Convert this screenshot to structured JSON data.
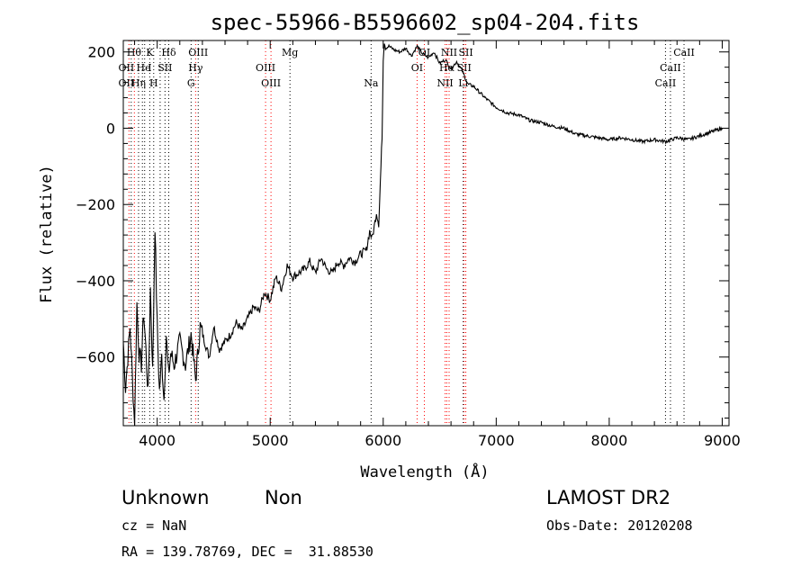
{
  "chart_data": {
    "type": "line",
    "title": "spec-55966-B5596602_sp04-204.fits",
    "xlabel": "Wavelength (Å)",
    "ylabel": "Flux (relative)",
    "xlim": [
      3700,
      9060
    ],
    "ylim": [
      -780,
      230
    ],
    "xticks": [
      4000,
      5000,
      6000,
      7000,
      8000,
      9000
    ],
    "yticks": [
      -600,
      -400,
      -200,
      0,
      200
    ],
    "series": [
      {
        "x": [
          3700,
          3720,
          3740,
          3760,
          3780,
          3800,
          3820,
          3840,
          3860,
          3880,
          3900,
          3920,
          3940,
          3960,
          3980,
          4000,
          4020,
          4040,
          4060,
          4080,
          4100,
          4120,
          4150,
          4200,
          4250,
          4300,
          4340,
          4380,
          4420,
          4460,
          4500,
          4550,
          4600,
          4650,
          4700,
          4750,
          4800,
          4850,
          4900,
          4950,
          5000,
          5050,
          5100,
          5150,
          5200,
          5250,
          5300,
          5350,
          5400,
          5450,
          5500,
          5550,
          5600,
          5650,
          5700,
          5750,
          5800,
          5850,
          5880,
          5900,
          5920,
          5940,
          5960,
          5970,
          5980,
          5990,
          6000,
          6010,
          6020,
          6050,
          6100,
          6150,
          6200,
          6250,
          6300,
          6350,
          6400,
          6450,
          6500,
          6550,
          6600,
          6650,
          6700,
          6750,
          6800,
          6900,
          7000,
          7100,
          7200,
          7300,
          7400,
          7500,
          7600,
          7700,
          7800,
          7900,
          8000,
          8100,
          8200,
          8300,
          8400,
          8500,
          8600,
          8700,
          8800,
          8900,
          9000
        ],
        "y": [
          -560,
          -680,
          -600,
          -520,
          -650,
          -780,
          -460,
          -590,
          -620,
          -480,
          -580,
          -700,
          -420,
          -640,
          -250,
          -520,
          -690,
          -600,
          -710,
          -540,
          -650,
          -590,
          -620,
          -560,
          -620,
          -540,
          -660,
          -520,
          -560,
          -600,
          -520,
          -580,
          -560,
          -540,
          -510,
          -530,
          -500,
          -470,
          -480,
          -430,
          -450,
          -390,
          -420,
          -360,
          -390,
          -380,
          -370,
          -350,
          -380,
          -340,
          -370,
          -380,
          -350,
          -360,
          -340,
          -350,
          -330,
          -320,
          -270,
          -290,
          -260,
          -220,
          -250,
          -180,
          -100,
          -20,
          180,
          225,
          210,
          215,
          205,
          200,
          210,
          190,
          215,
          195,
          185,
          200,
          170,
          180,
          155,
          175,
          150,
          115,
          110,
          80,
          55,
          40,
          35,
          20,
          15,
          5,
          0,
          -15,
          -20,
          -25,
          -30,
          -25,
          -30,
          -35,
          -30,
          -35,
          -25,
          -30,
          -20,
          -10,
          0
        ]
      }
    ],
    "lines": [
      {
        "w": 3750,
        "color": "#ff0000"
      },
      {
        "w": 3770,
        "color": "#000000"
      },
      {
        "w": 3798,
        "color": "#ff0000"
      },
      {
        "w": 3835,
        "color": "#000000"
      },
      {
        "w": 3869,
        "color": "#000000"
      },
      {
        "w": 3889,
        "color": "#000000"
      },
      {
        "w": 3934,
        "color": "#000000"
      },
      {
        "w": 3969,
        "color": "#000000"
      },
      {
        "w": 4026,
        "color": "#000000"
      },
      {
        "w": 4069,
        "color": "#000000"
      },
      {
        "w": 4102,
        "color": "#000000"
      },
      {
        "w": 4300,
        "color": "#000000"
      },
      {
        "w": 4340,
        "color": "#ff0000"
      },
      {
        "w": 4363,
        "color": "#000000"
      },
      {
        "w": 4959,
        "color": "#ff0000"
      },
      {
        "w": 5007,
        "color": "#ff0000"
      },
      {
        "w": 5175,
        "color": "#000000"
      },
      {
        "w": 5893,
        "color": "#000000"
      },
      {
        "w": 6300,
        "color": "#ff0000"
      },
      {
        "w": 6364,
        "color": "#ff0000"
      },
      {
        "w": 6548,
        "color": "#ff0000"
      },
      {
        "w": 6563,
        "color": "#ff0000"
      },
      {
        "w": 6583,
        "color": "#ff0000"
      },
      {
        "w": 6708,
        "color": "#000000"
      },
      {
        "w": 6716,
        "color": "#ff0000"
      },
      {
        "w": 6731,
        "color": "#ff0000"
      },
      {
        "w": 8498,
        "color": "#000000"
      },
      {
        "w": 8542,
        "color": "#000000"
      },
      {
        "w": 8662,
        "color": "#000000"
      }
    ],
    "annotations": [
      {
        "text": "Hθ",
        "w": 3795,
        "row": 0
      },
      {
        "text": "K",
        "w": 3934,
        "row": 0
      },
      {
        "text": "Hδ",
        "w": 4102,
        "row": 0
      },
      {
        "text": "OIII",
        "w": 4363,
        "row": 0
      },
      {
        "text": "Mg",
        "w": 5175,
        "row": 0
      },
      {
        "text": "OI",
        "w": 6364,
        "row": 0
      },
      {
        "text": "NII",
        "w": 6583,
        "row": 0
      },
      {
        "text": "SII",
        "w": 6731,
        "row": 0
      },
      {
        "text": "CaII",
        "w": 8662,
        "row": 0
      },
      {
        "text": "OII",
        "w": 3727,
        "row": 1
      },
      {
        "text": "He",
        "w": 3880,
        "row": 1
      },
      {
        "text": "I",
        "w": 3934,
        "row": 1
      },
      {
        "text": "SII",
        "w": 4069,
        "row": 1
      },
      {
        "text": "Hγ",
        "w": 4340,
        "row": 1
      },
      {
        "text": "OIII",
        "w": 4959,
        "row": 1
      },
      {
        "text": "OI",
        "w": 6300,
        "row": 1
      },
      {
        "text": "Hα",
        "w": 6563,
        "row": 1
      },
      {
        "text": "SII",
        "w": 6716,
        "row": 1
      },
      {
        "text": "CaII",
        "w": 8542,
        "row": 1
      },
      {
        "text": "OII",
        "w": 3727,
        "row": 2
      },
      {
        "text": "Hη",
        "w": 3835,
        "row": 2
      },
      {
        "text": "H",
        "w": 3969,
        "row": 2
      },
      {
        "text": "G",
        "w": 4300,
        "row": 2
      },
      {
        "text": "OIII",
        "w": 5007,
        "row": 2
      },
      {
        "text": "Na",
        "w": 5893,
        "row": 2
      },
      {
        "text": "NII",
        "w": 6548,
        "row": 2
      },
      {
        "text": "Li",
        "w": 6708,
        "row": 2
      },
      {
        "text": "CaII",
        "w": 8498,
        "row": 2
      }
    ]
  },
  "info": {
    "class_label": "Unknown",
    "subclass_label": "Non",
    "survey": "LAMOST DR2",
    "cz": "cz = NaN",
    "obs_date": "Obs-Date: 20120208",
    "coords": "RA = 139.78769, DEC =  31.88530"
  }
}
